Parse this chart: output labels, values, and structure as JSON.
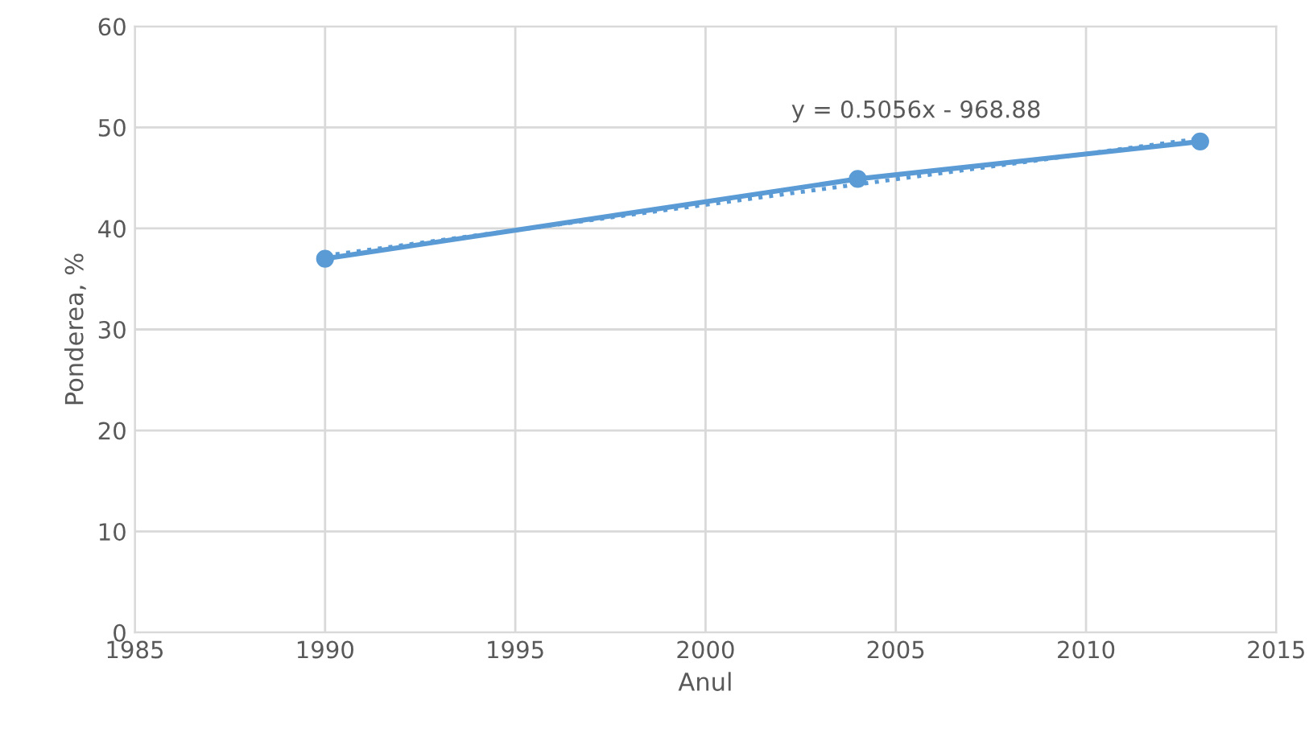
{
  "chart_data": {
    "type": "line",
    "xlabel": "Anul",
    "ylabel": "Ponderea, %",
    "xlim": [
      1985,
      2015
    ],
    "xticks": [
      1985,
      1990,
      1995,
      2000,
      2005,
      2010,
      2015
    ],
    "ylim": [
      0,
      60
    ],
    "yticks": [
      0,
      10,
      20,
      30,
      40,
      50,
      60
    ],
    "grid": true,
    "legend": false,
    "series": [
      {
        "color": "#5b9bd5",
        "x": [
          1990,
          2004,
          2013
        ],
        "values": [
          37,
          44.9,
          48.6
        ],
        "marker": "circle",
        "line_style": "solid"
      },
      {
        "color": "#5b9bd5",
        "x": [
          1990,
          2013
        ],
        "values": [
          37.3,
          48.9
        ],
        "marker": "none",
        "line_style": "dotted"
      }
    ],
    "annotations": [
      "y = 0.5056x - 968.88"
    ]
  }
}
